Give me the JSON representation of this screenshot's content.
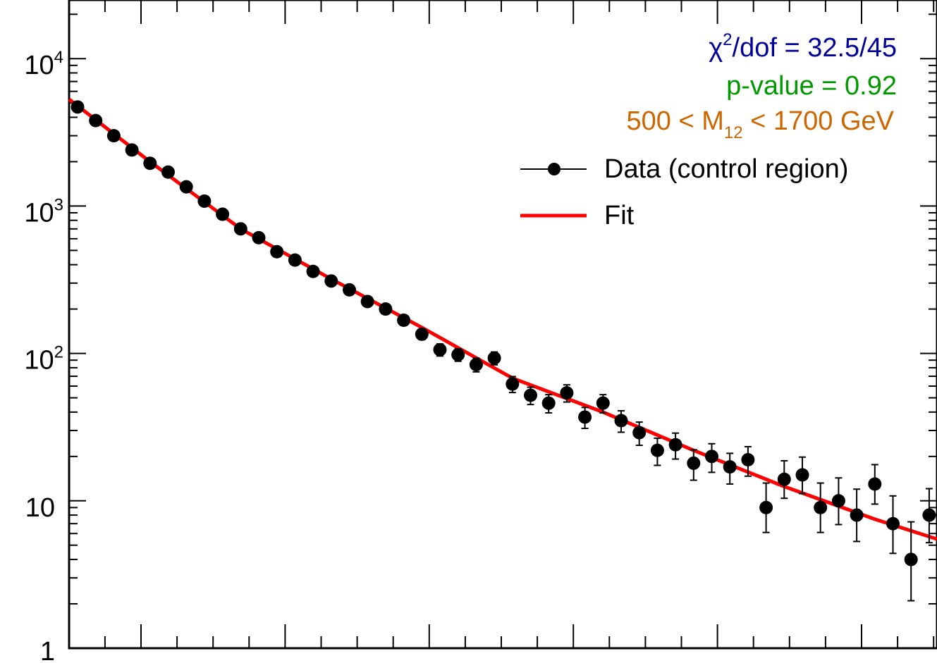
{
  "chart_data": {
    "type": "scatter",
    "title": "",
    "xlabel": "",
    "ylabel": "",
    "y_scale": "log",
    "ylim": [
      1,
      25000
    ],
    "y_ticks": [
      {
        "value": 1,
        "base": "1",
        "exp": ""
      },
      {
        "value": 10,
        "base": "10",
        "exp": ""
      },
      {
        "value": 100,
        "base": "10",
        "exp": "2"
      },
      {
        "value": 1000,
        "base": "10",
        "exp": "3"
      },
      {
        "value": 10000,
        "base": "10",
        "exp": "4"
      }
    ],
    "x_tick_labels_shown": false,
    "grid": false,
    "legend_position": "top-right",
    "legend": [
      {
        "label": "Data (control region)",
        "marker": "point-with-errorbar",
        "color": "#000000"
      },
      {
        "label": "Fit",
        "marker": "line",
        "color": "#ff0000"
      }
    ],
    "annotations": {
      "chi2": {
        "symbol": "χ",
        "sup": "2",
        "text": "/dof = 32.5/45",
        "color": "#000099"
      },
      "pvalue": {
        "text": "p-value = 0.92",
        "color": "#009900"
      },
      "mass_range": {
        "prefix": "500 < M",
        "sub": "12",
        "suffix": " < 1700 GeV",
        "color": "#cc6600"
      }
    },
    "series": [
      {
        "name": "Data (control region)",
        "kind": "points",
        "color": "#000000",
        "x": [
          1,
          2,
          3,
          4,
          5,
          6,
          7,
          8,
          9,
          10,
          11,
          12,
          13,
          14,
          15,
          16,
          17,
          18,
          19,
          20,
          21,
          22,
          23,
          24,
          25,
          26,
          27,
          28,
          29,
          30,
          31,
          32,
          33,
          34,
          35,
          36,
          37,
          38,
          39,
          40,
          41,
          42,
          43,
          44,
          45,
          46,
          47,
          48
        ],
        "values": [
          4700,
          3800,
          3000,
          2400,
          1950,
          1700,
          1350,
          1080,
          880,
          700,
          610,
          490,
          430,
          360,
          310,
          270,
          225,
          200,
          168,
          135,
          106,
          98,
          84,
          93,
          62,
          52,
          46,
          54,
          37,
          46,
          35,
          29,
          22,
          24,
          18,
          20,
          17,
          19,
          9,
          14,
          15,
          9,
          10,
          8,
          13,
          7,
          4,
          8
        ],
        "err_low": [
          70,
          60,
          55,
          48,
          45,
          40,
          35,
          32,
          29,
          26,
          24,
          22,
          20,
          19,
          17,
          16,
          15,
          14,
          13,
          11,
          10,
          9.5,
          9,
          9.3,
          7.7,
          7,
          6.5,
          7.2,
          6,
          6.5,
          5.8,
          5.2,
          4.6,
          4.8,
          4.2,
          4.4,
          4,
          4.3,
          2.9,
          3.6,
          3.8,
          2.9,
          3.1,
          2.7,
          3.5,
          2.6,
          1.9,
          2.8
        ],
        "err_high": [
          70,
          60,
          55,
          48,
          45,
          40,
          35,
          32,
          29,
          26,
          24,
          22,
          20,
          19,
          17,
          16,
          15,
          14,
          13,
          11,
          10,
          9.5,
          9,
          9.3,
          7.7,
          7,
          6.5,
          7.2,
          6,
          6.5,
          5.8,
          5.2,
          4.6,
          4.8,
          4.2,
          4.4,
          4,
          4.3,
          4.2,
          4.7,
          4.8,
          4.2,
          4.3,
          4,
          4.6,
          3.8,
          3.2,
          4.1
        ]
      },
      {
        "name": "Fit",
        "kind": "line",
        "color": "#ff0000",
        "x": [
          0,
          5,
          10,
          15,
          20,
          25,
          30,
          35,
          40,
          45,
          48.5
        ],
        "values": [
          5300,
          2000,
          700,
          320,
          150,
          68,
          40,
          22,
          12.5,
          7.5,
          5.5
        ]
      }
    ]
  }
}
